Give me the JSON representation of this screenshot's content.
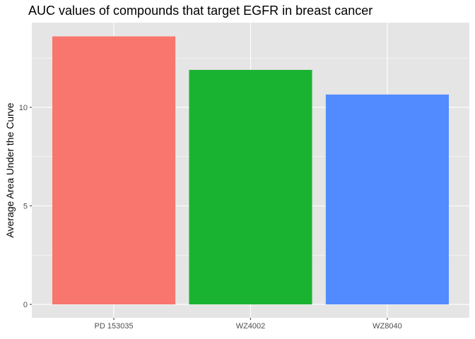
{
  "chart_data": {
    "type": "bar",
    "title": "AUC values of compounds that target EGFR in breast cancer",
    "xlabel": "",
    "ylabel": "Average Area Under the Curve",
    "categories": [
      "PD 153035",
      "WZ4002",
      "WZ8040"
    ],
    "values": [
      13.6,
      11.9,
      10.65
    ],
    "colors": [
      "#F8766D",
      "#1AB331",
      "#528BFF"
    ],
    "ylim": [
      -0.68,
      14.3
    ],
    "yticks": [
      0,
      5,
      10
    ],
    "ytick_labels": [
      "0",
      "5",
      "10"
    ],
    "grid": true,
    "legend": "none",
    "panel_background": "#E5E5E5",
    "grid_color": "#FFFFFF"
  }
}
